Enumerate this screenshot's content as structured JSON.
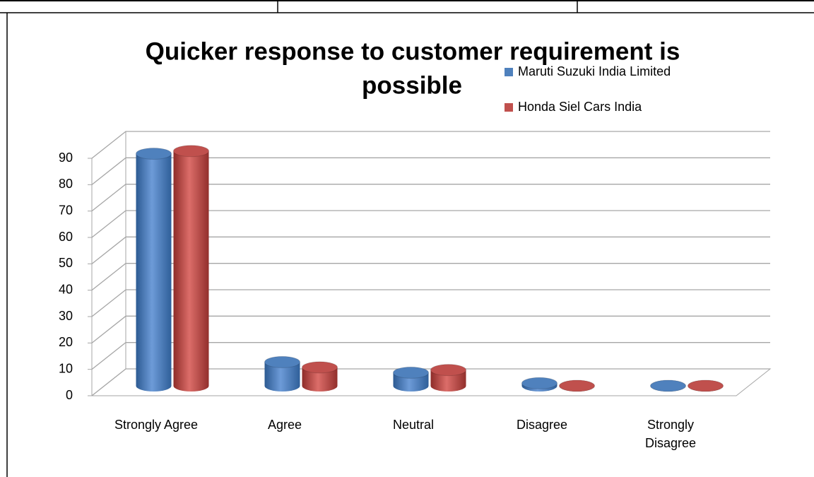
{
  "chart_data": {
    "type": "bar3d",
    "title": [
      "Quicker response to customer requirement is",
      "possible"
    ],
    "categories": [
      "Strongly Agree",
      "Agree",
      "Neutral",
      "Disagree",
      "Strongly Disagree"
    ],
    "series": [
      {
        "name": "Maruti Suzuki India Limited",
        "color": "#4f81bd",
        "values": [
          88,
          9,
          5,
          1,
          0
        ]
      },
      {
        "name": "Honda Siel Cars India",
        "color": "#c0504d",
        "values": [
          89,
          7,
          6,
          0,
          0
        ]
      }
    ],
    "ylim": [
      0,
      90
    ],
    "yticks": [
      0,
      10,
      20,
      30,
      40,
      50,
      60,
      70,
      80,
      90
    ],
    "grid": true,
    "legend": "top-right"
  }
}
